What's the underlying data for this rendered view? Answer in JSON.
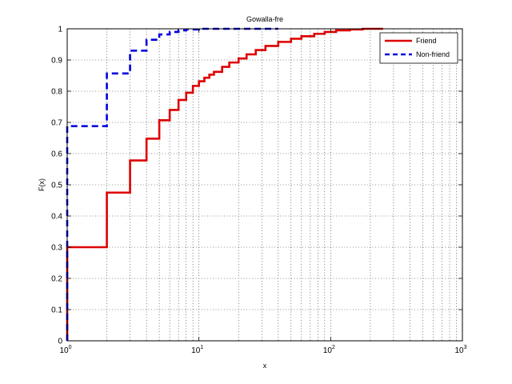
{
  "chart_data": {
    "type": "line",
    "title": "Gowalla-fre",
    "xlabel": "x",
    "ylabel": "F(x)",
    "xscale": "log",
    "xlim": [
      1,
      1000
    ],
    "ylim": [
      0,
      1
    ],
    "grid": true,
    "legend_position": "top-right",
    "x_tick_labels": [
      {
        "base": "10",
        "exp": "0"
      },
      {
        "base": "10",
        "exp": "1"
      },
      {
        "base": "10",
        "exp": "2"
      },
      {
        "base": "10",
        "exp": "3"
      }
    ],
    "y_tick_labels": [
      "0",
      "0.1",
      "0.2",
      "0.3",
      "0.4",
      "0.5",
      "0.6",
      "0.7",
      "0.8",
      "0.9",
      "1"
    ],
    "series": [
      {
        "name": "Friend",
        "color": "#dd0000",
        "style": "solid",
        "step": true,
        "points": [
          [
            1,
            0
          ],
          [
            1,
            0.3
          ],
          [
            2,
            0.475
          ],
          [
            3,
            0.578
          ],
          [
            4,
            0.648
          ],
          [
            5,
            0.707
          ],
          [
            6,
            0.74
          ],
          [
            7,
            0.772
          ],
          [
            8,
            0.795
          ],
          [
            9,
            0.817
          ],
          [
            10,
            0.832
          ],
          [
            11,
            0.843
          ],
          [
            12,
            0.853
          ],
          [
            13,
            0.862
          ],
          [
            15,
            0.878
          ],
          [
            17,
            0.892
          ],
          [
            20,
            0.905
          ],
          [
            23,
            0.918
          ],
          [
            27,
            0.932
          ],
          [
            32,
            0.945
          ],
          [
            40,
            0.958
          ],
          [
            50,
            0.968
          ],
          [
            60,
            0.976
          ],
          [
            75,
            0.984
          ],
          [
            90,
            0.99
          ],
          [
            110,
            0.995
          ],
          [
            140,
            0.998
          ],
          [
            175,
            1.0
          ],
          [
            250,
            1.0
          ]
        ]
      },
      {
        "name": "Non-friend",
        "color": "#0000dd",
        "style": "dashed",
        "step": true,
        "points": [
          [
            1,
            0
          ],
          [
            1,
            0.688
          ],
          [
            2,
            0.857
          ],
          [
            3,
            0.93
          ],
          [
            4,
            0.965
          ],
          [
            5,
            0.982
          ],
          [
            6,
            0.99
          ],
          [
            7,
            0.995
          ],
          [
            8,
            0.998
          ],
          [
            10,
            1.0
          ],
          [
            40,
            1.0
          ]
        ]
      }
    ]
  }
}
